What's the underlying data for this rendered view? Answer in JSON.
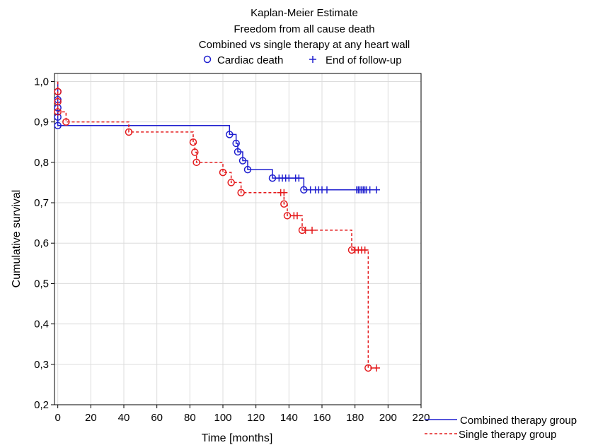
{
  "chart_data": {
    "type": "line",
    "subtype": "kaplan-meier-step",
    "title": [
      "Kaplan-Meier Estimate",
      "Freedom from all cause death",
      "Combined vs single therapy at any heart wall"
    ],
    "xlabel": "Time [months]",
    "ylabel": "Cumulative survival",
    "xlim": [
      -2,
      220
    ],
    "ylim": [
      0.2,
      1.02
    ],
    "xticks": [
      0,
      20,
      40,
      60,
      80,
      100,
      120,
      140,
      160,
      180,
      200,
      220
    ],
    "yticks": [
      0.2,
      0.3,
      0.4,
      0.5,
      0.6,
      0.7,
      0.8,
      0.9,
      1.0
    ],
    "ytick_labels": [
      "0,2",
      "0,3",
      "0,4",
      "0,5",
      "0,6",
      "0,7",
      "0,8",
      "0,9",
      "1,0"
    ],
    "grid": true,
    "marker_legend": {
      "position": "top",
      "items": [
        {
          "symbol": "circle",
          "label": "Cardiac death"
        },
        {
          "symbol": "plus",
          "label": "End of follow-up"
        }
      ]
    },
    "line_legend_position": "bottom-right",
    "series": [
      {
        "name": "Combined therapy group",
        "color": "#1f1fcf",
        "line_style": "solid",
        "steps": [
          [
            0,
            1.0
          ],
          [
            0,
            0.975
          ],
          [
            0,
            0.955
          ],
          [
            0,
            0.935
          ],
          [
            0,
            0.912
          ],
          [
            0,
            0.891
          ],
          [
            104,
            0.869
          ],
          [
            108,
            0.847
          ],
          [
            109,
            0.826
          ],
          [
            112,
            0.804
          ],
          [
            115,
            0.782
          ],
          [
            130,
            0.761
          ],
          [
            149,
            0.732
          ]
        ],
        "end_x": 193,
        "events": [
          [
            0,
            0.975
          ],
          [
            0,
            0.955
          ],
          [
            0,
            0.935
          ],
          [
            0,
            0.912
          ],
          [
            0,
            0.891
          ],
          [
            104,
            0.869
          ],
          [
            108,
            0.847
          ],
          [
            109,
            0.826
          ],
          [
            112,
            0.804
          ],
          [
            115,
            0.782
          ],
          [
            130,
            0.761
          ],
          [
            149,
            0.732
          ]
        ],
        "censored": [
          [
            134,
            0.761
          ],
          [
            136,
            0.761
          ],
          [
            138,
            0.761
          ],
          [
            140,
            0.761
          ],
          [
            144,
            0.761
          ],
          [
            146,
            0.761
          ],
          [
            153,
            0.732
          ],
          [
            156,
            0.732
          ],
          [
            158,
            0.732
          ],
          [
            160,
            0.732
          ],
          [
            163,
            0.732
          ],
          [
            181,
            0.732
          ],
          [
            182,
            0.732
          ],
          [
            183,
            0.732
          ],
          [
            184,
            0.732
          ],
          [
            185,
            0.732
          ],
          [
            186,
            0.732
          ],
          [
            187,
            0.732
          ],
          [
            189,
            0.732
          ],
          [
            193,
            0.732
          ]
        ]
      },
      {
        "name": "Single therapy group",
        "color": "#e41a1c",
        "line_style": "dashed",
        "steps": [
          [
            0,
            1.0
          ],
          [
            0,
            0.975
          ],
          [
            0,
            0.95
          ],
          [
            0,
            0.925
          ],
          [
            5,
            0.9
          ],
          [
            43,
            0.875
          ],
          [
            82,
            0.85
          ],
          [
            83,
            0.825
          ],
          [
            84,
            0.8
          ],
          [
            100,
            0.775
          ],
          [
            105,
            0.75
          ],
          [
            111,
            0.725
          ],
          [
            137,
            0.697
          ],
          [
            139,
            0.668
          ],
          [
            148,
            0.632
          ],
          [
            178,
            0.583
          ],
          [
            188,
            0.291
          ]
        ],
        "end_x": 193,
        "events": [
          [
            0,
            0.975
          ],
          [
            0,
            0.95
          ],
          [
            0,
            0.925
          ],
          [
            5,
            0.9
          ],
          [
            43,
            0.875
          ],
          [
            82,
            0.85
          ],
          [
            83,
            0.825
          ],
          [
            84,
            0.8
          ],
          [
            100,
            0.775
          ],
          [
            105,
            0.75
          ],
          [
            111,
            0.725
          ],
          [
            137,
            0.697
          ],
          [
            139,
            0.668
          ],
          [
            148,
            0.632
          ],
          [
            178,
            0.583
          ],
          [
            188,
            0.291
          ]
        ],
        "censored": [
          [
            135,
            0.725
          ],
          [
            137,
            0.725
          ],
          [
            143,
            0.668
          ],
          [
            145,
            0.668
          ],
          [
            150,
            0.632
          ],
          [
            154,
            0.632
          ],
          [
            180,
            0.583
          ],
          [
            182,
            0.583
          ],
          [
            184,
            0.583
          ],
          [
            186,
            0.583
          ],
          [
            193,
            0.291
          ]
        ]
      }
    ]
  }
}
